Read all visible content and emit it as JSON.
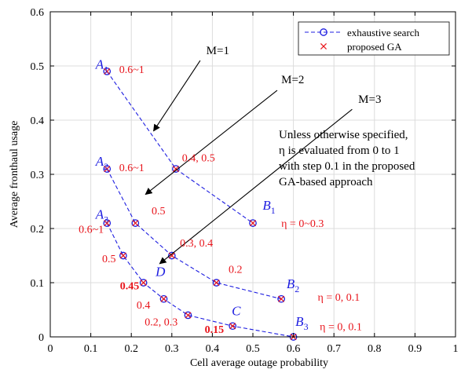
{
  "chart_data": {
    "type": "line",
    "xlabel": "Cell average outage probability",
    "ylabel": "Average fronthaul usage",
    "xlim": [
      0,
      1
    ],
    "ylim": [
      0,
      0.6
    ],
    "xticks": [
      "0",
      "0.1",
      "0.2",
      "0.3",
      "0.4",
      "0.5",
      "0.6",
      "0.7",
      "0.8",
      "0.9",
      "1"
    ],
    "yticks": [
      "0",
      "0.1",
      "0.2",
      "0.3",
      "0.4",
      "0.5",
      "0.6"
    ],
    "grid": true,
    "legend_position": "top-right",
    "colors": {
      "exhaustive": "#1d1de0",
      "ga": "#e8141b"
    },
    "series": [
      {
        "name": "exhaustive search",
        "style": "dashed-circle",
        "curves": [
          [
            [
              0.14,
              0.49
            ],
            [
              0.31,
              0.31
            ],
            [
              0.5,
              0.21
            ]
          ],
          [
            [
              0.14,
              0.31
            ],
            [
              0.21,
              0.21
            ],
            [
              0.3,
              0.15
            ],
            [
              0.41,
              0.1
            ],
            [
              0.57,
              0.07
            ]
          ],
          [
            [
              0.14,
              0.21
            ],
            [
              0.18,
              0.15
            ],
            [
              0.23,
              0.1
            ],
            [
              0.28,
              0.07
            ],
            [
              0.34,
              0.04
            ],
            [
              0.45,
              0.02
            ],
            [
              0.6,
              0.0
            ]
          ]
        ]
      },
      {
        "name": "proposed GA",
        "style": "cross",
        "points": [
          [
            0.14,
            0.49
          ],
          [
            0.31,
            0.31
          ],
          [
            0.5,
            0.21
          ],
          [
            0.14,
            0.31
          ],
          [
            0.21,
            0.21
          ],
          [
            0.3,
            0.15
          ],
          [
            0.41,
            0.1
          ],
          [
            0.57,
            0.07
          ],
          [
            0.14,
            0.21
          ],
          [
            0.18,
            0.15
          ],
          [
            0.23,
            0.1
          ],
          [
            0.28,
            0.07
          ],
          [
            0.34,
            0.04
          ],
          [
            0.45,
            0.02
          ],
          [
            0.6,
            0.0
          ]
        ]
      }
    ],
    "point_labels": [
      {
        "text": "0.6~1",
        "x": 0.17,
        "y": 0.487,
        "color": "red",
        "weight": "normal"
      },
      {
        "text": "0.4, 0.5",
        "x": 0.325,
        "y": 0.324,
        "color": "red",
        "weight": "normal"
      },
      {
        "text": "η = 0~0.3",
        "x": 0.57,
        "y": 0.203,
        "color": "red",
        "weight": "normal"
      },
      {
        "text": "0.6~1",
        "x": 0.17,
        "y": 0.306,
        "color": "red",
        "weight": "normal"
      },
      {
        "text": "0.5",
        "x": 0.25,
        "y": 0.226,
        "color": "red",
        "weight": "normal"
      },
      {
        "text": "0.3, 0.4",
        "x": 0.32,
        "y": 0.167,
        "color": "red",
        "weight": "normal"
      },
      {
        "text": "0.2",
        "x": 0.44,
        "y": 0.118,
        "color": "red",
        "weight": "normal"
      },
      {
        "text": "η = 0, 0.1",
        "x": 0.66,
        "y": 0.067,
        "color": "red",
        "weight": "normal"
      },
      {
        "text": "0.6~1",
        "x": 0.07,
        "y": 0.192,
        "color": "red",
        "weight": "normal"
      },
      {
        "text": "0.5",
        "x": 0.128,
        "y": 0.138,
        "color": "red",
        "weight": "normal"
      },
      {
        "text": "0.45",
        "x": 0.172,
        "y": 0.088,
        "color": "red",
        "weight": "bold"
      },
      {
        "text": "0.4",
        "x": 0.213,
        "y": 0.052,
        "color": "red",
        "weight": "normal"
      },
      {
        "text": "0.2, 0.3",
        "x": 0.233,
        "y": 0.021,
        "color": "red",
        "weight": "normal"
      },
      {
        "text": "0.15",
        "x": 0.381,
        "y": 0.007,
        "color": "red",
        "weight": "bold"
      },
      {
        "text": "η = 0, 0.1",
        "x": 0.665,
        "y": 0.012,
        "color": "red",
        "weight": "normal"
      }
    ],
    "point_names": [
      {
        "name": "A",
        "sub": "1",
        "x": 0.112,
        "y": 0.495
      },
      {
        "name": "A",
        "sub": "2",
        "x": 0.112,
        "y": 0.316
      },
      {
        "name": "A",
        "sub": "3",
        "x": 0.112,
        "y": 0.218
      },
      {
        "name": "B",
        "sub": "1",
        "x": 0.524,
        "y": 0.235
      },
      {
        "name": "B",
        "sub": "2",
        "x": 0.583,
        "y": 0.09
      },
      {
        "name": "B",
        "sub": "3",
        "x": 0.605,
        "y": 0.02
      },
      {
        "name": "D",
        "sub": "",
        "x": 0.26,
        "y": 0.112
      },
      {
        "name": "C",
        "sub": "",
        "x": 0.448,
        "y": 0.04
      }
    ],
    "arrows": [
      {
        "label": "M=1",
        "label_x": 0.385,
        "label_y": 0.522,
        "from": [
          0.37,
          0.51
        ],
        "to": [
          0.255,
          0.38
        ]
      },
      {
        "label": "M=2",
        "label_x": 0.57,
        "label_y": 0.468,
        "from": [
          0.56,
          0.455
        ],
        "to": [
          0.235,
          0.263
        ]
      },
      {
        "label": "M=3",
        "label_x": 0.76,
        "label_y": 0.432,
        "from": [
          0.745,
          0.42
        ],
        "to": [
          0.27,
          0.135
        ]
      }
    ],
    "note_lines": [
      "Unless otherwise specified,",
      "η is evaluated from 0 to 1",
      "with step 0.1 in the proposed",
      "GA-based approach"
    ]
  }
}
